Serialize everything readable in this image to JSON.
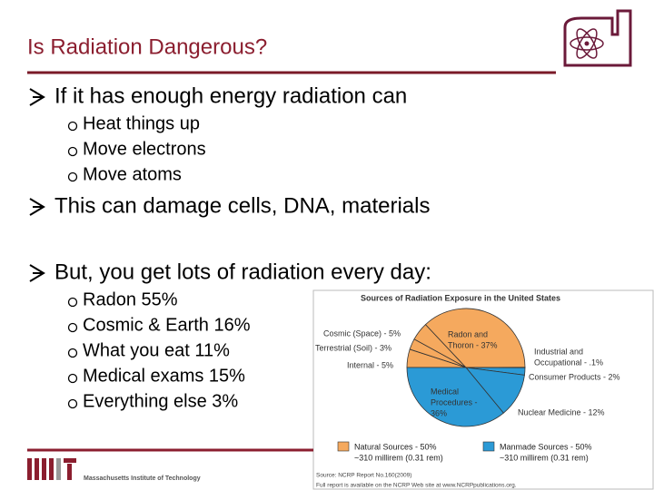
{
  "header": {
    "title": "Is Radiation Dangerous?"
  },
  "bullets": [
    {
      "text": "If it has enough energy radiation can",
      "subitems": [
        "Heat things up",
        "Move electrons",
        "Move atoms"
      ]
    },
    {
      "text": "This can damage cells, DNA, materials"
    },
    {
      "text": "But, you get lots of radiation every day:",
      "subitems": [
        "Radon 55%",
        "Cosmic & Earth 16%",
        "What you eat 11%",
        "Medical exams 15%",
        "Everything else 3%"
      ]
    }
  ],
  "figure": {
    "title": "Sources of Radiation Exposure in the United States",
    "groups": [
      {
        "label": "Natural Sources - 50%",
        "sublabel": "~310 millirem (0.31 rem)",
        "color": "#f5a95e",
        "slices": [
          {
            "label_lines": [
              "Internal - 5%"
            ],
            "value": 5
          },
          {
            "label_lines": [
              "Terrestrial (Soil) - 3%"
            ],
            "value": 3
          },
          {
            "label_lines": [
              "Cosmic (Space) - 5%"
            ],
            "value": 5
          },
          {
            "label_lines": [
              "Radon and",
              "Thoron - 37%"
            ],
            "value": 37
          }
        ]
      },
      {
        "label": "Manmade Sources - 50%",
        "sublabel": "~310 millirem (0.31 rem)",
        "color": "#2b9ad6",
        "slices": [
          {
            "label_lines": [
              "Industrial and",
              "Occupational - .1%"
            ],
            "value": 0.1
          },
          {
            "label_lines": [
              "Consumer Products - 2%"
            ],
            "value": 2
          },
          {
            "label_lines": [
              "Nuclear Medicine - 12%"
            ],
            "value": 12
          },
          {
            "label_lines": [
              "Medical",
              "Procedures -",
              "36%"
            ],
            "value": 36
          }
        ]
      }
    ],
    "source": [
      "Source: NCRP Report No.160(2009)",
      "Full report is available on the NCRP Web site at www.NCRPpublications.org."
    ]
  },
  "footer": {
    "institution": "Massachusetts Institute of Technology"
  }
}
